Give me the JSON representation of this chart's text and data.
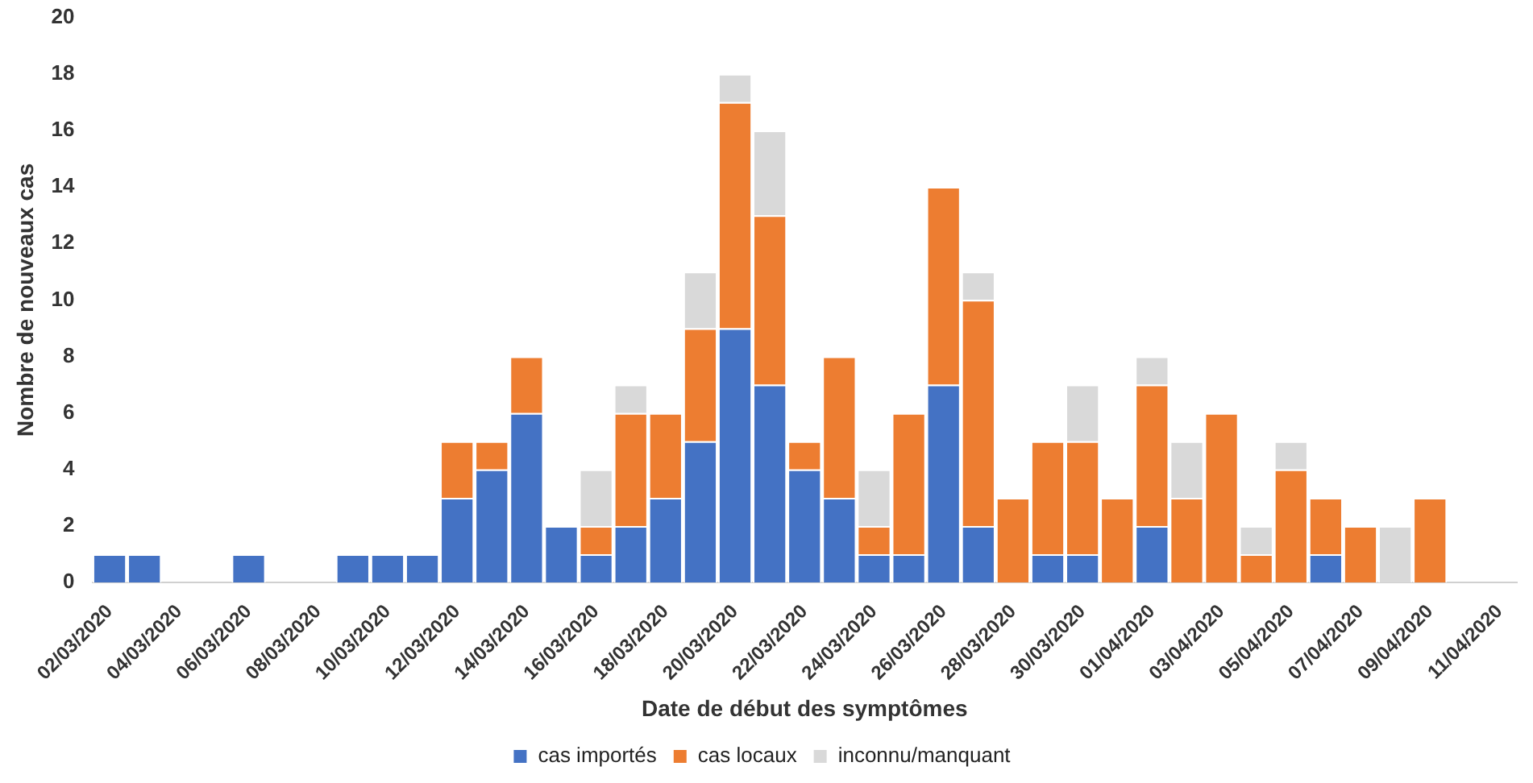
{
  "chart_data": {
    "type": "bar",
    "stacked": true,
    "xlabel": "Date de début des symptômes",
    "ylabel": "Nombre de nouveaux cas",
    "categories": [
      "02/03/2020",
      null,
      "04/03/2020",
      null,
      "06/03/2020",
      null,
      "08/03/2020",
      null,
      "10/03/2020",
      null,
      "12/03/2020",
      null,
      "14/03/2020",
      null,
      "16/03/2020",
      null,
      "18/03/2020",
      null,
      "20/03/2020",
      null,
      "22/03/2020",
      null,
      "24/03/2020",
      null,
      "26/03/2020",
      null,
      "28/03/2020",
      null,
      "30/03/2020",
      null,
      "01/04/2020",
      null,
      "03/04/2020",
      null,
      "05/04/2020",
      null,
      "07/04/2020",
      null,
      "09/04/2020",
      null,
      "11/04/2020"
    ],
    "series": [
      {
        "name": "cas importés",
        "color": "#4472c4",
        "values": [
          1,
          1,
          0,
          0,
          1,
          0,
          0,
          1,
          1,
          1,
          3,
          4,
          6,
          2,
          1,
          2,
          3,
          5,
          9,
          7,
          4,
          3,
          1,
          1,
          7,
          2,
          0,
          1,
          1,
          0,
          2,
          0,
          0,
          0,
          0,
          1,
          0,
          0,
          0,
          0,
          0
        ]
      },
      {
        "name": "cas locaux",
        "color": "#ed7d31",
        "values": [
          0,
          0,
          0,
          0,
          0,
          0,
          0,
          0,
          0,
          0,
          2,
          1,
          2,
          0,
          1,
          4,
          3,
          4,
          8,
          6,
          1,
          5,
          1,
          5,
          7,
          8,
          3,
          4,
          4,
          3,
          5,
          3,
          6,
          1,
          4,
          2,
          2,
          0,
          3,
          0,
          0
        ]
      },
      {
        "name": "inconnu/manquant",
        "color": "#d9d9d9",
        "values": [
          0,
          0,
          0,
          0,
          0,
          0,
          0,
          0,
          0,
          0,
          0,
          0,
          0,
          0,
          2,
          1,
          0,
          2,
          1,
          3,
          0,
          0,
          2,
          0,
          0,
          1,
          0,
          0,
          2,
          0,
          1,
          2,
          0,
          1,
          1,
          0,
          0,
          2,
          0,
          0,
          0
        ]
      }
    ],
    "ylim": [
      0,
      20
    ],
    "yticks": [
      0,
      2,
      4,
      6,
      8,
      10,
      12,
      14,
      16,
      18,
      20
    ],
    "grid": false,
    "legend": "bottom"
  }
}
